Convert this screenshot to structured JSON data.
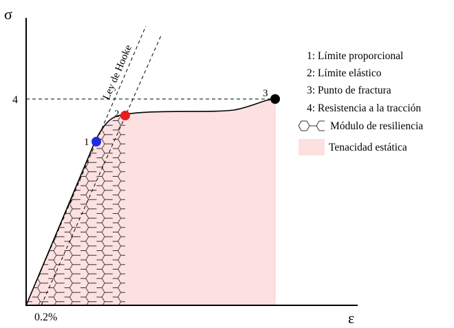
{
  "axes": {
    "y_symbol": "σ",
    "x_symbol": "ε",
    "y_tick": "4",
    "x_tick": "0.2%"
  },
  "hooke_label": "Ley de Hooke",
  "points": [
    {
      "label": "1",
      "color": "#1f2de0"
    },
    {
      "label": "2",
      "color": "#e81c1c"
    },
    {
      "label": "3",
      "color": "#000000"
    }
  ],
  "legend": {
    "items": [
      "1: Límite proporcional",
      "2: Límite elástico",
      "3: Punto de fractura",
      "4: Resistencia a la tracción"
    ],
    "resilience": "Módulo de resiliencia",
    "toughness": "Tenacidad estática"
  },
  "colors": {
    "toughness_fill": "#fde0e0",
    "hatch": "#333333"
  }
}
